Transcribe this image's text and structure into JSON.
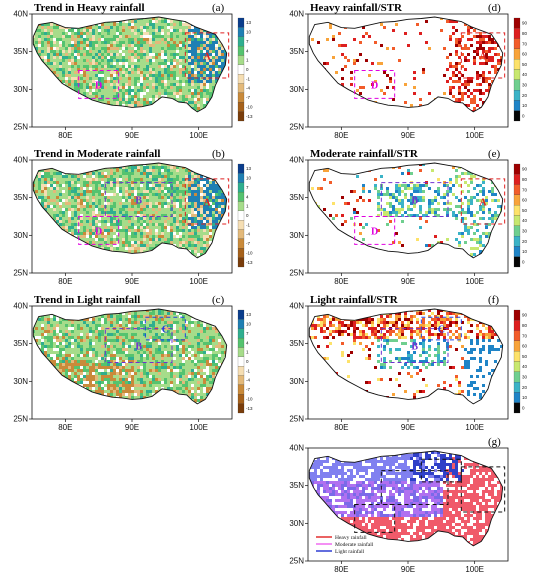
{
  "panels": [
    {
      "id": "a",
      "title": "Trend in Heavy rainfall",
      "label": "(a)",
      "kind": "trend",
      "fill": "mixed-green",
      "colorbar": {
        "ticks": [
          "13",
          "10",
          "7",
          "4",
          "1",
          "0",
          "-1",
          "-4",
          "-7",
          "-10",
          "-13"
        ]
      },
      "boxes": [
        {
          "label": "A",
          "color": "#e02020"
        },
        {
          "label": "D",
          "color": "#e000e0"
        }
      ]
    },
    {
      "id": "d",
      "title": "Heavy rainfall/STR",
      "label": "(d)",
      "kind": "ratio",
      "fill": "sparse-red",
      "colorbar": {
        "ticks": [
          "90",
          "80",
          "70",
          "60",
          "50",
          "40",
          "30",
          "20",
          "10",
          "0"
        ]
      },
      "boxes": [
        {
          "label": "A",
          "color": "#e02020"
        },
        {
          "label": "D",
          "color": "#e000e0"
        }
      ]
    },
    {
      "id": "b",
      "title": "Trend in Moderate rainfall",
      "label": "(b)",
      "kind": "trend",
      "fill": "mixed-green",
      "colorbar": {
        "ticks": [
          "13",
          "10",
          "7",
          "4",
          "1",
          "0",
          "-1",
          "-4",
          "-7",
          "-10",
          "-13"
        ]
      },
      "boxes": [
        {
          "label": "A",
          "color": "#e02020"
        },
        {
          "label": "B",
          "color": "#7030d0"
        },
        {
          "label": "D",
          "color": "#e000e0"
        }
      ]
    },
    {
      "id": "e",
      "title": "Moderate rainfall/STR",
      "label": "(e)",
      "kind": "ratio",
      "fill": "sparse-mixed",
      "colorbar": {
        "ticks": [
          "90",
          "80",
          "70",
          "60",
          "50",
          "40",
          "30",
          "20",
          "10",
          "0"
        ]
      },
      "boxes": [
        {
          "label": "A",
          "color": "#e02020"
        },
        {
          "label": "B",
          "color": "#7030d0"
        },
        {
          "label": "D",
          "color": "#e000e0"
        }
      ]
    },
    {
      "id": "c",
      "title": "Trend in Light rainfall",
      "label": "(c)",
      "kind": "trend",
      "fill": "light-green",
      "colorbar": {
        "ticks": [
          "13",
          "10",
          "7",
          "4",
          "1",
          "0",
          "-1",
          "-4",
          "-7",
          "-10",
          "-13"
        ]
      },
      "boxes": [
        {
          "label": "B",
          "color": "#7030d0"
        },
        {
          "label": "C",
          "color": "#2040e0"
        }
      ]
    },
    {
      "id": "f",
      "title": "Light rainfall/STR",
      "label": "(f)",
      "kind": "ratio",
      "fill": "sparse-orange",
      "colorbar": {
        "ticks": [
          "90",
          "80",
          "70",
          "60",
          "50",
          "40",
          "30",
          "20",
          "10",
          "0"
        ]
      },
      "boxes": [
        {
          "label": "B",
          "color": "#7030d0"
        },
        {
          "label": "C",
          "color": "#2040e0"
        }
      ]
    },
    {
      "id": "g",
      "title": "",
      "label": "(g)",
      "kind": "class",
      "fill": "class",
      "legend": [
        {
          "name": "Heavy rainfall",
          "color": "#e02020"
        },
        {
          "name": "Moderate rainfall",
          "color": "#f060f0"
        },
        {
          "name": "Light rainfall",
          "color": "#2030d0"
        }
      ],
      "boxes": []
    }
  ],
  "axes": {
    "lat_ticks": [
      "40N",
      "35N",
      "30N",
      "25N"
    ],
    "lon_ticks": [
      "80E",
      "90E",
      "100E"
    ]
  },
  "colors": {
    "trend_scale": [
      "#0a3d8c",
      "#1f7fb3",
      "#2fae8f",
      "#55c36f",
      "#a6dc8a",
      "#ffffff",
      "#f5deb3",
      "#e3b97a",
      "#c98a3a",
      "#a6611a",
      "#7a3d0b"
    ],
    "ratio_scale": [
      "#9e0000",
      "#dd1f1f",
      "#f25c2a",
      "#f8a33a",
      "#fde26a",
      "#c8e86f",
      "#6fcf8f",
      "#3bb3c7",
      "#1f84c7",
      "#050505"
    ]
  }
}
